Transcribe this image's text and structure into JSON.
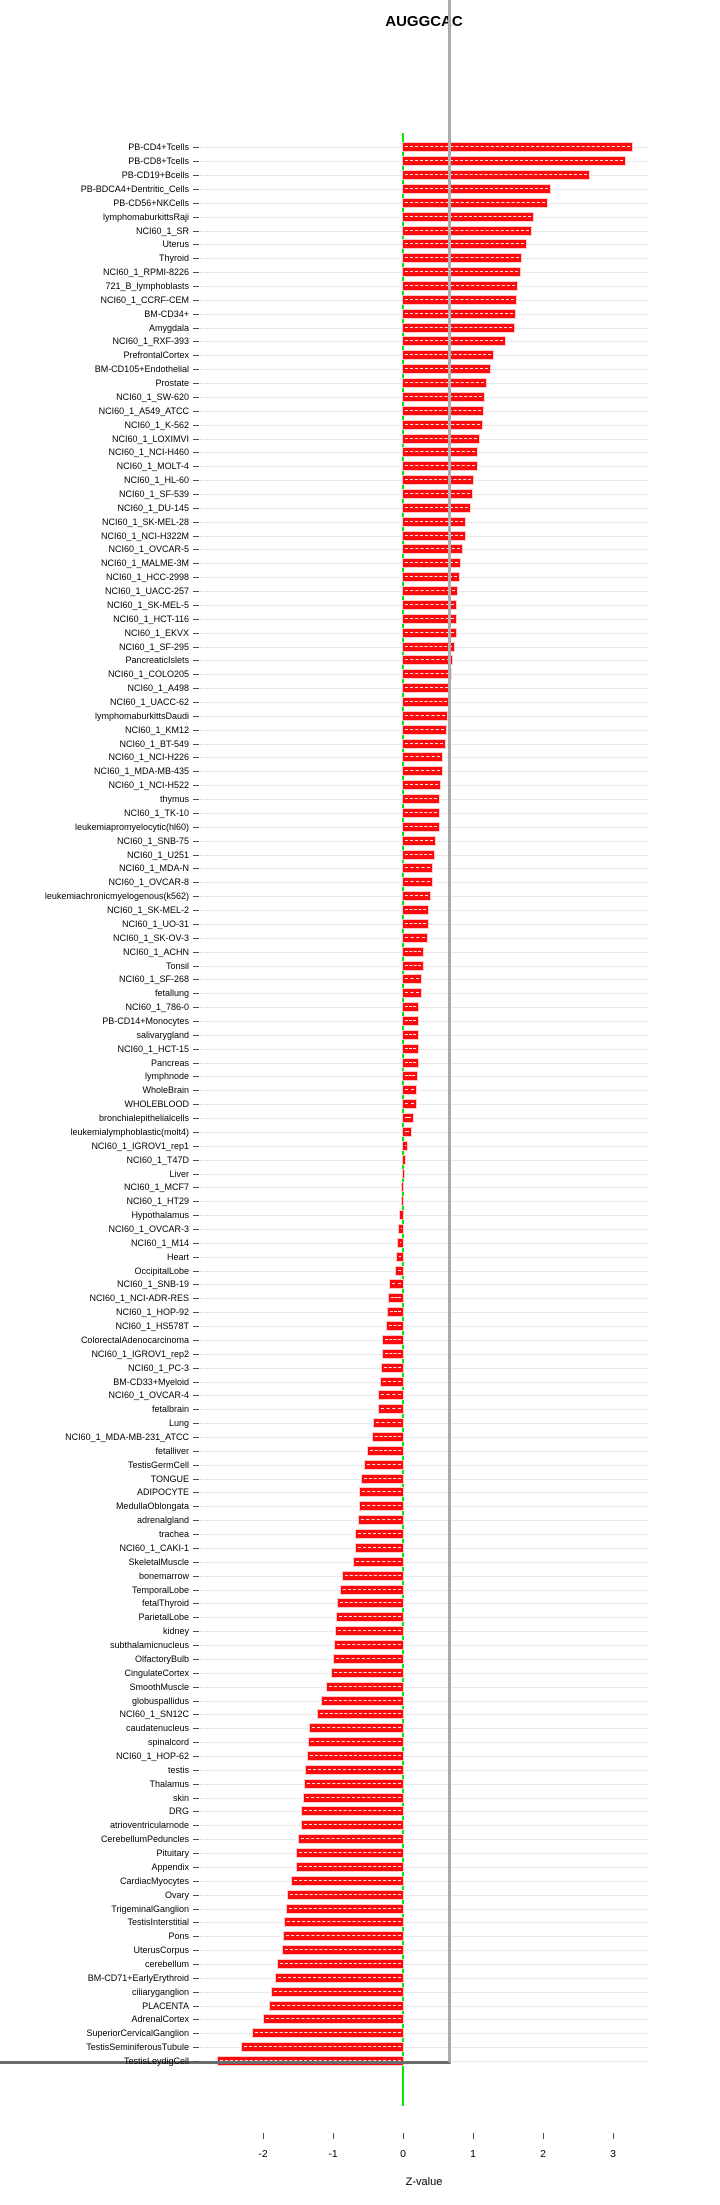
{
  "title": "AUGGCAC",
  "chart_data": {
    "type": "bar",
    "orientation": "horizontal",
    "title": "AUGGCAC",
    "xlabel": "Z-value",
    "xlim": [
      -2.9,
      3.5
    ],
    "xticks": [
      -2,
      -1,
      0,
      1,
      2,
      3
    ],
    "grid": true,
    "bar_color": "#fb0b0e",
    "zero_line_color": "#00ee00",
    "categories": [
      "PB-CD4+Tcells",
      "PB-CD8+Tcells",
      "PB-CD19+Bcells",
      "PB-BDCA4+Dentritic_Cells",
      "PB-CD56+NKCells",
      "lymphomaburkittsRaji",
      "NCI60_1_SR",
      "Uterus",
      "Thyroid",
      "NCI60_1_RPMI-8226",
      "721_B_lymphoblasts",
      "NCI60_1_CCRF-CEM",
      "BM-CD34+",
      "Amygdala",
      "NCI60_1_RXF-393",
      "PrefrontalCortex",
      "BM-CD105+Endothelial",
      "Prostate",
      "NCI60_1_SW-620",
      "NCI60_1_A549_ATCC",
      "NCI60_1_K-562",
      "NCI60_1_LOXIMVI",
      "NCI60_1_NCI-H460",
      "NCI60_1_MOLT-4",
      "NCI60_1_HL-60",
      "NCI60_1_SF-539",
      "NCI60_1_DU-145",
      "NCI60_1_SK-MEL-28",
      "NCI60_1_NCI-H322M",
      "NCI60_1_OVCAR-5",
      "NCI60_1_MALME-3M",
      "NCI60_1_HCC-2998",
      "NCI60_1_UACC-257",
      "NCI60_1_SK-MEL-5",
      "NCI60_1_HCT-116",
      "NCI60_1_EKVX",
      "NCI60_1_SF-295",
      "PancreaticIslets",
      "NCI60_1_COLO205",
      "NCI60_1_A498",
      "NCI60_1_UACC-62",
      "lymphomaburkittsDaudi",
      "NCI60_1_KM12",
      "NCI60_1_BT-549",
      "NCI60_1_NCI-H226",
      "NCI60_1_MDA-MB-435",
      "NCI60_1_NCI-H522",
      "thymus",
      "NCI60_1_TK-10",
      "leukemiapromyelocytic(hl60)",
      "NCI60_1_SNB-75",
      "NCI60_1_U251",
      "NCI60_1_MDA-N",
      "NCI60_1_OVCAR-8",
      "leukemiachronicmyelogenous(k562)",
      "NCI60_1_SK-MEL-2",
      "NCI60_1_UO-31",
      "NCI60_1_SK-OV-3",
      "NCI60_1_ACHN",
      "Tonsil",
      "NCI60_1_SF-268",
      "fetallung",
      "NCI60_1_786-0",
      "PB-CD14+Monocytes",
      "salivarygland",
      "NCI60_1_HCT-15",
      "Pancreas",
      "lymphnode",
      "WholeBrain",
      "WHOLEBLOOD",
      "bronchialepithelialcells",
      "leukemialymphoblastic(molt4)",
      "NCI60_1_IGROV1_rep1",
      "NCI60_1_T47D",
      "Liver",
      "NCI60_1_MCF7",
      "NCI60_1_HT29",
      "Hypothalamus",
      "NCI60_1_OVCAR-3",
      "NCI60_1_M14",
      "Heart",
      "OccipitalLobe",
      "NCI60_1_SNB-19",
      "NCI60_1_NCI-ADR-RES",
      "NCI60_1_HOP-92",
      "NCI60_1_HS578T",
      "ColorectalAdenocarcinoma",
      "NCI60_1_IGROV1_rep2",
      "NCI60_1_PC-3",
      "BM-CD33+Myeloid",
      "NCI60_1_OVCAR-4",
      "fetalbrain",
      "Lung",
      "NCI60_1_MDA-MB-231_ATCC",
      "fetalliver",
      "TestisGermCell",
      "TONGUE",
      "ADIPOCYTE",
      "MedullaOblongata",
      "adrenalgland",
      "trachea",
      "NCI60_1_CAKI-1",
      "SkeletalMuscle",
      "bonemarrow",
      "TemporalLobe",
      "fetalThyroid",
      "ParietalLobe",
      "kidney",
      "subthalamicnucleus",
      "OlfactoryBulb",
      "CingulateCortex",
      "SmoothMuscle",
      "globuspallidus",
      "NCI60_1_SN12C",
      "caudatenucleus",
      "spinalcord",
      "NCI60_1_HOP-62",
      "testis",
      "Thalamus",
      "skin",
      "DRG",
      "atrioventricularnode",
      "CerebellumPeduncles",
      "Pituitary",
      "Appendix",
      "CardiacMyocytes",
      "Ovary",
      "TrigeminalGanglion",
      "TestisInterstitial",
      "Pons",
      "UterusCorpus",
      "cerebellum",
      "BM-CD71+EarlyErythroid",
      "ciliaryganglion",
      "PLACENTA",
      "AdrenalCortex",
      "SuperiorCervicalGanglion",
      "TestisSeminiferousTubule",
      "TestisLeydigCell"
    ],
    "values": [
      3.27,
      3.17,
      2.66,
      2.1,
      2.06,
      1.86,
      1.83,
      1.75,
      1.69,
      1.67,
      1.63,
      1.61,
      1.6,
      1.58,
      1.46,
      1.28,
      1.24,
      1.18,
      1.15,
      1.14,
      1.13,
      1.08,
      1.06,
      1.05,
      1.0,
      0.98,
      0.95,
      0.89,
      0.88,
      0.84,
      0.81,
      0.8,
      0.77,
      0.76,
      0.76,
      0.75,
      0.73,
      0.7,
      0.69,
      0.67,
      0.65,
      0.63,
      0.61,
      0.6,
      0.56,
      0.55,
      0.53,
      0.52,
      0.51,
      0.51,
      0.45,
      0.44,
      0.42,
      0.41,
      0.39,
      0.36,
      0.35,
      0.34,
      0.29,
      0.29,
      0.25,
      0.25,
      0.22,
      0.22,
      0.21,
      0.21,
      0.21,
      0.2,
      0.18,
      0.18,
      0.14,
      0.11,
      0.06,
      0.03,
      0.01,
      -0.01,
      -0.01,
      -0.04,
      -0.06,
      -0.07,
      -0.08,
      -0.1,
      -0.19,
      -0.2,
      -0.22,
      -0.23,
      -0.28,
      -0.28,
      -0.3,
      -0.32,
      -0.35,
      -0.35,
      -0.42,
      -0.43,
      -0.5,
      -0.54,
      -0.58,
      -0.61,
      -0.62,
      -0.63,
      -0.67,
      -0.67,
      -0.7,
      -0.86,
      -0.89,
      -0.93,
      -0.94,
      -0.96,
      -0.97,
      -0.98,
      -1.02,
      -1.08,
      -1.16,
      -1.21,
      -1.33,
      -1.34,
      -1.36,
      -1.39,
      -1.4,
      -1.42,
      -1.45,
      -1.45,
      -1.48,
      -1.52,
      -1.52,
      -1.58,
      -1.64,
      -1.66,
      -1.68,
      -1.7,
      -1.72,
      -1.79,
      -1.82,
      -1.87,
      -1.9,
      -1.98,
      -2.15,
      -2.3,
      -2.65
    ]
  }
}
